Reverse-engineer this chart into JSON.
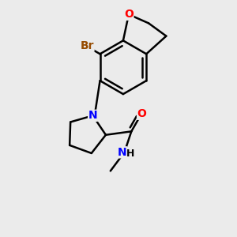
{
  "bg_color": "#ebebeb",
  "bond_color": "#000000",
  "bond_width": 1.8,
  "atom_colors": {
    "Br": "#964B00",
    "O": "#FF0000",
    "N": "#0000FF",
    "C": "#000000",
    "H": "#000000"
  },
  "font_size": 10
}
